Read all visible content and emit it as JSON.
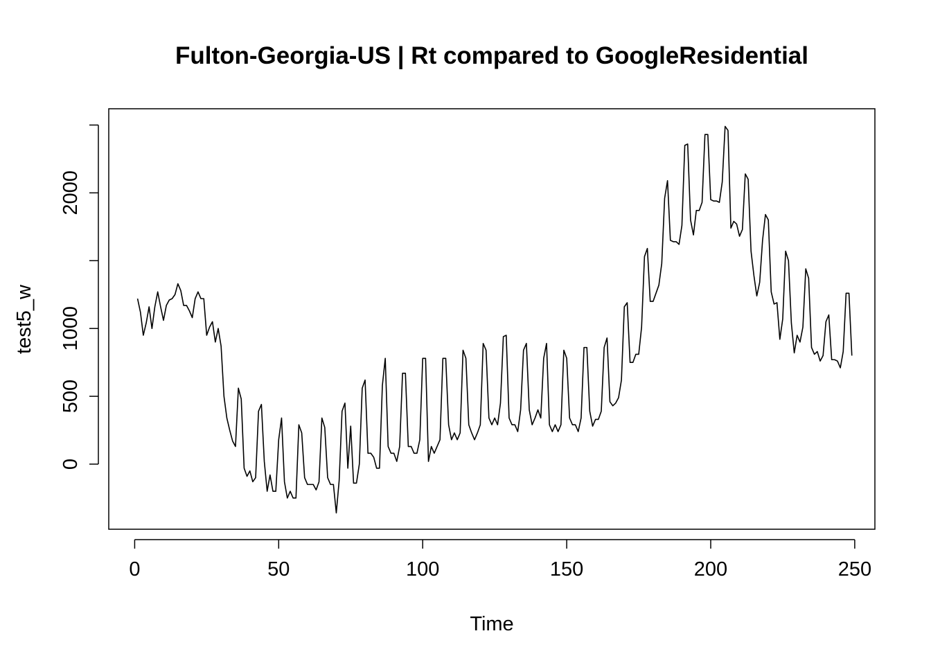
{
  "chart_data": {
    "type": "line",
    "title": "Fulton-Georgia-US | Rt compared to GoogleResidential",
    "xlabel": "Time",
    "ylabel": "test5_w",
    "xlim": [
      -9,
      257
    ],
    "ylim": [
      -480,
      2620
    ],
    "x_ticks": [
      0,
      50,
      100,
      150,
      200,
      250
    ],
    "x_tick_labels": [
      "0",
      "50",
      "100",
      "150",
      "200",
      "250"
    ],
    "y_ticks": [
      0,
      500,
      1000,
      1500,
      2000,
      2500
    ],
    "y_tick_labels": [
      "0",
      "500",
      "1000",
      "",
      "2000",
      ""
    ],
    "x_start": 1,
    "series": [
      {
        "values": [
          1220,
          1120,
          950,
          1040,
          1160,
          1000,
          1160,
          1270,
          1160,
          1060,
          1170,
          1210,
          1220,
          1250,
          1330,
          1280,
          1170,
          1170,
          1130,
          1080,
          1220,
          1270,
          1220,
          1220,
          950,
          1010,
          1050,
          900,
          1000,
          870,
          500,
          340,
          250,
          170,
          130,
          560,
          480,
          -30,
          -90,
          -50,
          -130,
          -100,
          390,
          440,
          20,
          -200,
          -80,
          -200,
          -200,
          180,
          340,
          -130,
          -250,
          -200,
          -250,
          -250,
          290,
          230,
          -100,
          -150,
          -150,
          -150,
          -190,
          -130,
          340,
          270,
          -100,
          -150,
          -150,
          -360,
          -120,
          390,
          450,
          -30,
          280,
          -140,
          -140,
          0,
          560,
          620,
          80,
          80,
          50,
          -30,
          -30,
          580,
          780,
          130,
          80,
          80,
          20,
          130,
          670,
          670,
          130,
          130,
          80,
          80,
          180,
          780,
          780,
          20,
          130,
          80,
          130,
          180,
          780,
          780,
          290,
          180,
          230,
          180,
          230,
          840,
          780,
          290,
          230,
          180,
          230,
          290,
          890,
          840,
          340,
          290,
          340,
          290,
          450,
          940,
          950,
          340,
          290,
          290,
          240,
          400,
          840,
          890,
          400,
          290,
          340,
          400,
          340,
          780,
          890,
          290,
          240,
          290,
          240,
          290,
          840,
          780,
          340,
          290,
          290,
          240,
          340,
          860,
          860,
          390,
          280,
          330,
          330,
          390,
          860,
          930,
          460,
          430,
          450,
          490,
          620,
          1160,
          1190,
          750,
          750,
          810,
          810,
          1010,
          1530,
          1590,
          1200,
          1200,
          1260,
          1320,
          1480,
          1960,
          2090,
          1650,
          1640,
          1640,
          1620,
          1760,
          2350,
          2360,
          1800,
          1690,
          1870,
          1870,
          1930,
          2430,
          2430,
          1950,
          1940,
          1940,
          1930,
          2080,
          2490,
          2460,
          1740,
          1790,
          1770,
          1680,
          1730,
          2140,
          2100,
          1570,
          1390,
          1240,
          1340,
          1650,
          1840,
          1800,
          1270,
          1180,
          1190,
          920,
          1070,
          1570,
          1500,
          1040,
          820,
          950,
          900,
          1010,
          1440,
          1370,
          860,
          810,
          830,
          760,
          800,
          1050,
          1100,
          770,
          770,
          760,
          710,
          830,
          1260,
          1260,
          800
        ]
      }
    ]
  }
}
